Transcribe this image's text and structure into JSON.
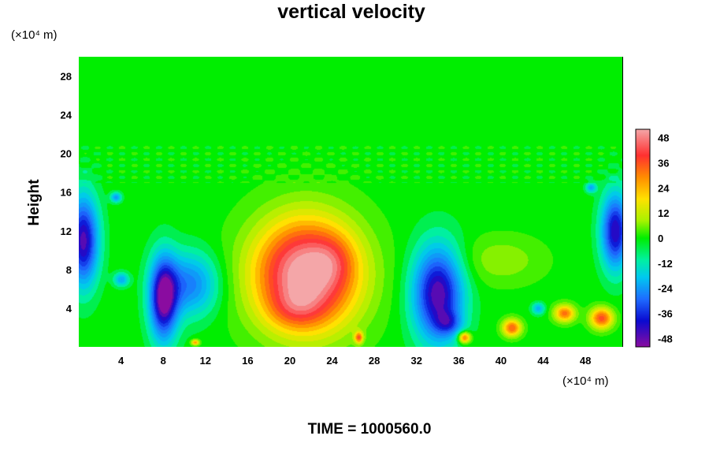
{
  "chart_data": {
    "type": "heatmap",
    "title": "vertical velocity",
    "ylabel": "Height",
    "y_unit": "(×10⁴ m)",
    "x_unit": "(×10⁴ m)",
    "footer": "TIME = 1000560.0",
    "xlim": [
      0,
      51.5
    ],
    "ylim": [
      0,
      30
    ],
    "x_ticks": [
      4,
      8,
      12,
      16,
      20,
      24,
      28,
      32,
      36,
      40,
      44,
      48
    ],
    "y_ticks": [
      4,
      8,
      12,
      16,
      20,
      24,
      28
    ],
    "colorbar": {
      "range": [
        -52,
        52
      ],
      "labels": [
        48,
        36,
        24,
        12,
        0,
        -12,
        -24,
        -36,
        -48
      ]
    },
    "features": [
      {
        "x": 21.5,
        "y": 7.5,
        "value": 50
      },
      {
        "x": 34.0,
        "y": 5.5,
        "value": -48
      },
      {
        "x": 8.0,
        "y": 5.0,
        "value": -50
      },
      {
        "x": 0.4,
        "y": 11.0,
        "value": -46
      },
      {
        "x": 50.8,
        "y": 12.0,
        "value": -44
      },
      {
        "x": 41.0,
        "y": 2.0,
        "value": 32
      },
      {
        "x": 46.0,
        "y": 3.5,
        "value": 30
      },
      {
        "x": 49.5,
        "y": 3.0,
        "value": 34
      },
      {
        "x": 36.5,
        "y": 1.0,
        "value": 34
      },
      {
        "x": 40.0,
        "y": 9.0,
        "value": 8
      }
    ]
  }
}
